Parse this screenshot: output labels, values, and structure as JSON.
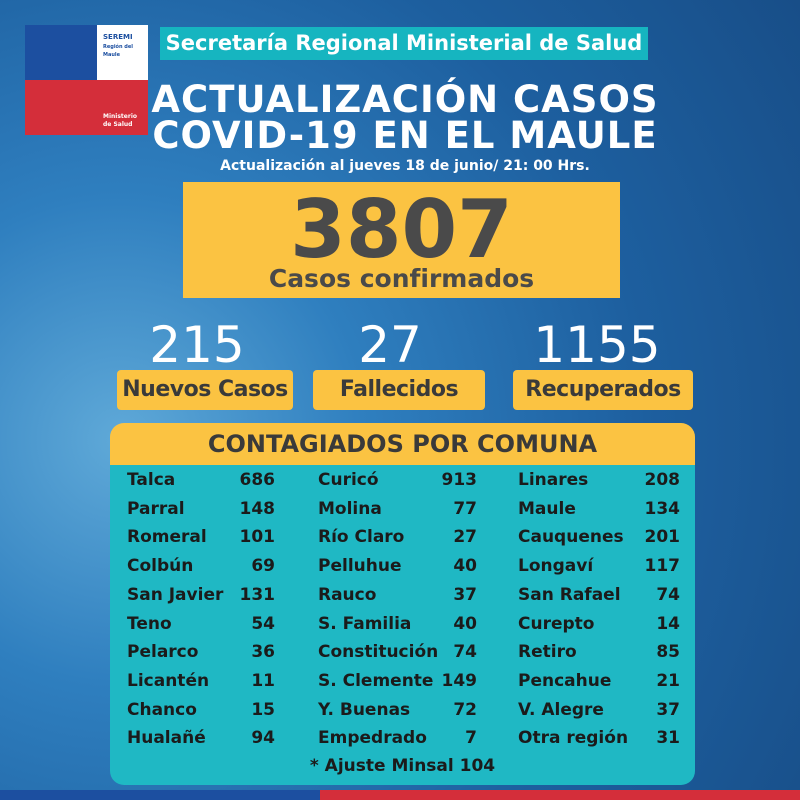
{
  "logo": {
    "name": "SEREMI",
    "region": "Región del Maule",
    "ministry": "Ministerio de Salud"
  },
  "header": {
    "title": "Secretaría Regional Ministerial de Salud"
  },
  "title": [
    "ACTUALIZACIÓN CASOS",
    "COVID-19 EN EL MAULE"
  ],
  "subtitle": "Actualización al jueves 18 de junio/ 21: 00 Hrs.",
  "total": {
    "value": 3807,
    "label": "Casos confirmados"
  },
  "stats": [
    {
      "value": 215,
      "label": "Nuevos Casos"
    },
    {
      "value": 27,
      "label": "Fallecidos"
    },
    {
      "value": 1155,
      "label": "Recuperados"
    }
  ],
  "table": {
    "title": "CONTAGIADOS POR COMUNA",
    "columns": [
      [
        [
          "Talca",
          686
        ],
        [
          "Parral",
          148
        ],
        [
          "Romeral",
          101
        ],
        [
          "Colbún",
          69
        ],
        [
          "San Javier",
          131
        ],
        [
          "Teno",
          54
        ],
        [
          "Pelarco",
          36
        ],
        [
          "Licantén",
          11
        ],
        [
          "Chanco",
          15
        ],
        [
          "Hualañé",
          94
        ]
      ],
      [
        [
          "Curicó",
          913
        ],
        [
          "Molina",
          77
        ],
        [
          "Río Claro",
          27
        ],
        [
          "Pelluhue",
          40
        ],
        [
          "Rauco",
          37
        ],
        [
          "S. Familia",
          40
        ],
        [
          "Constitución",
          74
        ],
        [
          "S. Clemente",
          149
        ],
        [
          "Y. Buenas",
          72
        ],
        [
          "Empedrado",
          7
        ]
      ],
      [
        [
          "Linares",
          208
        ],
        [
          "Maule",
          134
        ],
        [
          "Cauquenes",
          201
        ],
        [
          "Longaví",
          117
        ],
        [
          "San Rafael",
          74
        ],
        [
          "Curepto",
          14
        ],
        [
          "Retiro",
          85
        ],
        [
          "Pencahue",
          21
        ],
        [
          "V. Alegre",
          37
        ],
        [
          "Otra región",
          31
        ]
      ]
    ],
    "footer": "* Ajuste Minsal 104"
  }
}
